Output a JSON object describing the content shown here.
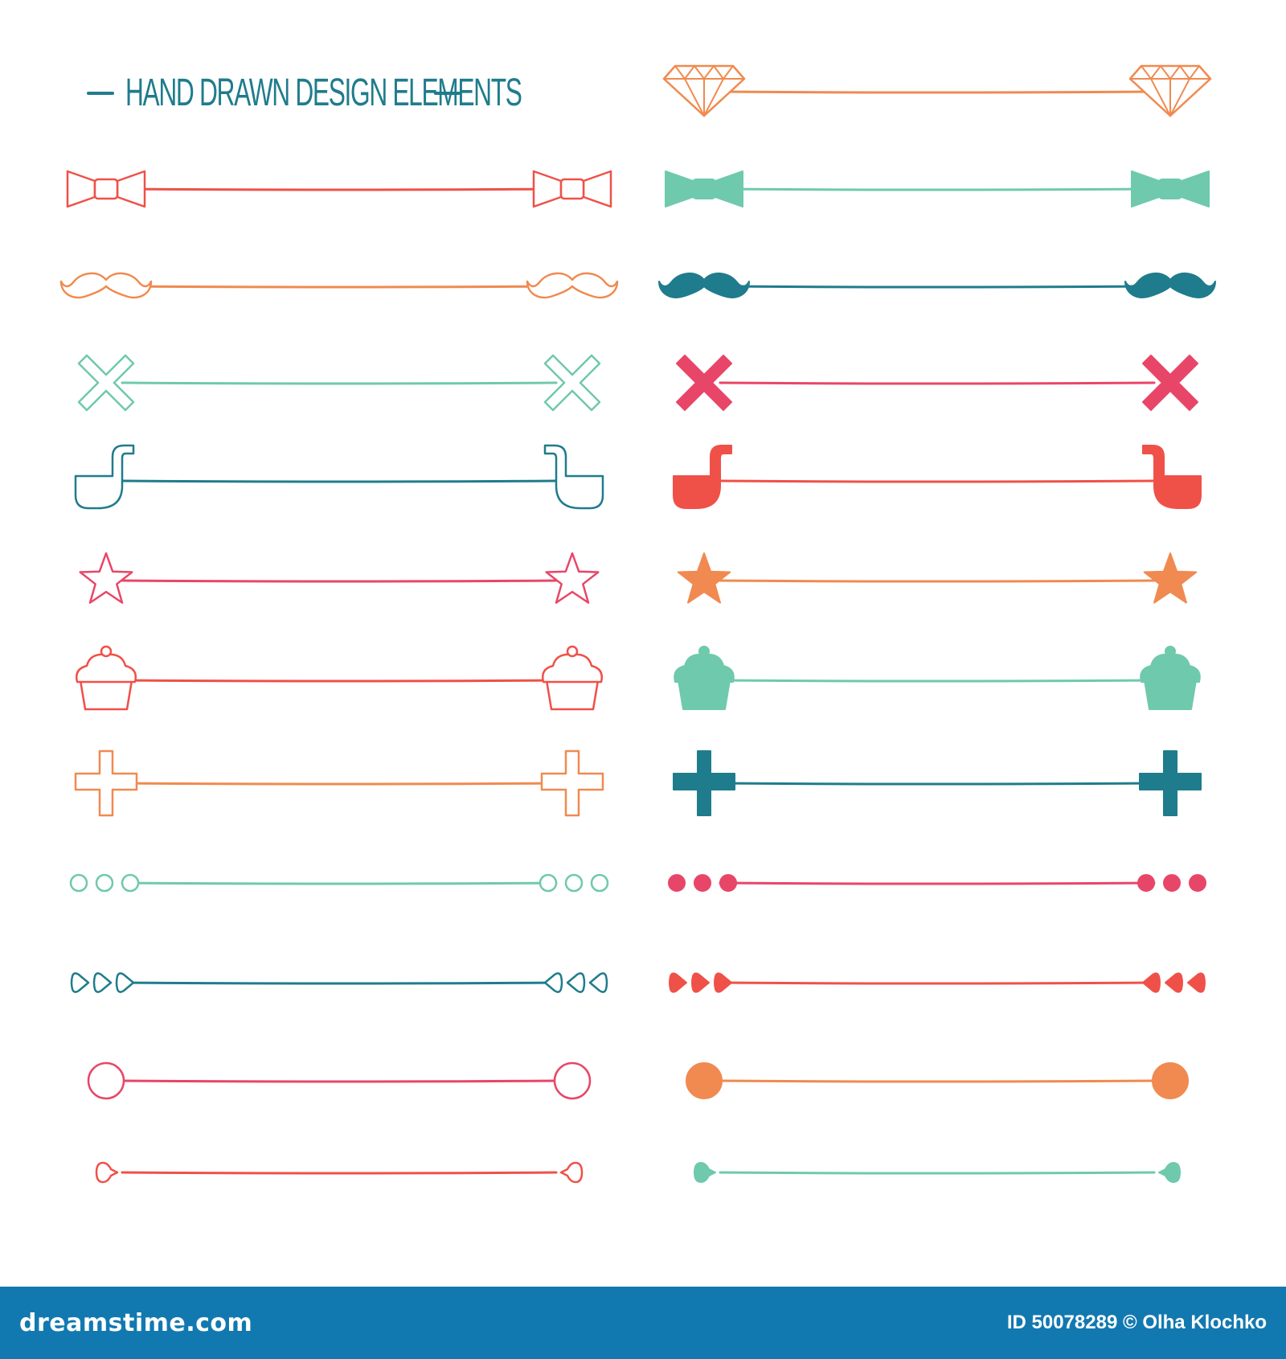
{
  "title": "HAND DRAWN DESIGN ELEMENTS",
  "footer": {
    "brand": "dreamstime.com",
    "credit": "ID 50078289 © Olha Klochko"
  },
  "colors": {
    "coral": "#ef5148",
    "orange": "#f08a50",
    "mint": "#6fc9ad",
    "teal": "#1f7c8c",
    "pink": "#e84668",
    "footer_bg": "#1279b0"
  },
  "dividers": {
    "left": [
      {
        "icon": "bow-tie-icon",
        "color": "coral",
        "style": "outline"
      },
      {
        "icon": "mustache-icon",
        "color": "orange",
        "style": "outline"
      },
      {
        "icon": "x-cross-icon",
        "color": "mint",
        "style": "outline"
      },
      {
        "icon": "pipe-icon",
        "color": "teal",
        "style": "outline"
      },
      {
        "icon": "star-icon",
        "color": "pink",
        "style": "outline"
      },
      {
        "icon": "cupcake-icon",
        "color": "coral",
        "style": "outline"
      },
      {
        "icon": "plus-cross-icon",
        "color": "orange",
        "style": "outline"
      },
      {
        "icon": "three-circles-icon",
        "color": "mint",
        "style": "outline"
      },
      {
        "icon": "three-hearts-icon",
        "color": "teal",
        "style": "outline"
      },
      {
        "icon": "circle-icon",
        "color": "pink",
        "style": "outline"
      },
      {
        "icon": "heart-icon",
        "color": "coral",
        "style": "outline"
      }
    ],
    "right": [
      {
        "icon": "diamond-icon",
        "color": "orange",
        "style": "outline"
      },
      {
        "icon": "bow-tie-icon",
        "color": "mint",
        "style": "filled"
      },
      {
        "icon": "mustache-icon",
        "color": "teal",
        "style": "filled"
      },
      {
        "icon": "x-cross-icon",
        "color": "pink",
        "style": "filled"
      },
      {
        "icon": "pipe-icon",
        "color": "coral",
        "style": "filled"
      },
      {
        "icon": "star-icon",
        "color": "orange",
        "style": "filled"
      },
      {
        "icon": "cupcake-icon",
        "color": "mint",
        "style": "filled"
      },
      {
        "icon": "plus-cross-icon",
        "color": "teal",
        "style": "filled"
      },
      {
        "icon": "three-circles-icon",
        "color": "pink",
        "style": "filled"
      },
      {
        "icon": "three-hearts-icon",
        "color": "coral",
        "style": "filled"
      },
      {
        "icon": "circle-icon",
        "color": "orange",
        "style": "filled"
      },
      {
        "icon": "heart-icon",
        "color": "mint",
        "style": "filled"
      }
    ]
  }
}
